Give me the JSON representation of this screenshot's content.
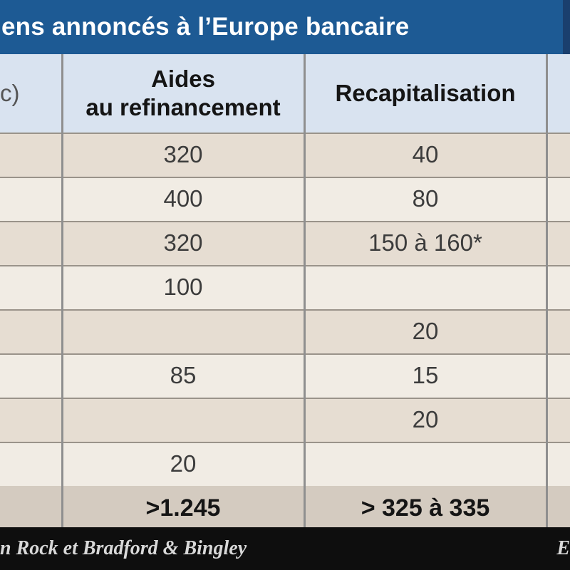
{
  "title": "ens annoncés à l’Europe bancaire",
  "headers": {
    "col1": "c)",
    "col2_line1": "Aides",
    "col2_line2": "au refinancement",
    "col3": "Recapitalisation"
  },
  "rows": [
    {
      "refinancement": "320",
      "recapitalisation": "40"
    },
    {
      "refinancement": "400",
      "recapitalisation": "80"
    },
    {
      "refinancement": "320",
      "recapitalisation": "150 à 160*"
    },
    {
      "refinancement": "100",
      "recapitalisation": ""
    },
    {
      "refinancement": "",
      "recapitalisation": "20"
    },
    {
      "refinancement": "85",
      "recapitalisation": "15"
    },
    {
      "refinancement": "",
      "recapitalisation": "20"
    },
    {
      "refinancement": "20",
      "recapitalisation": ""
    }
  ],
  "total": {
    "refinancement": ">1.245",
    "recapitalisation": "> 325 à 335"
  },
  "footer": {
    "left": "n Rock et Bradford & Bingley",
    "right": "E"
  },
  "colors": {
    "title_bg": "#1d5a94",
    "header_bg": "#d9e3f0",
    "row_odd": "#e6ddd2",
    "row_even": "#f1ece4",
    "footer_bg": "#0e0e0e"
  }
}
